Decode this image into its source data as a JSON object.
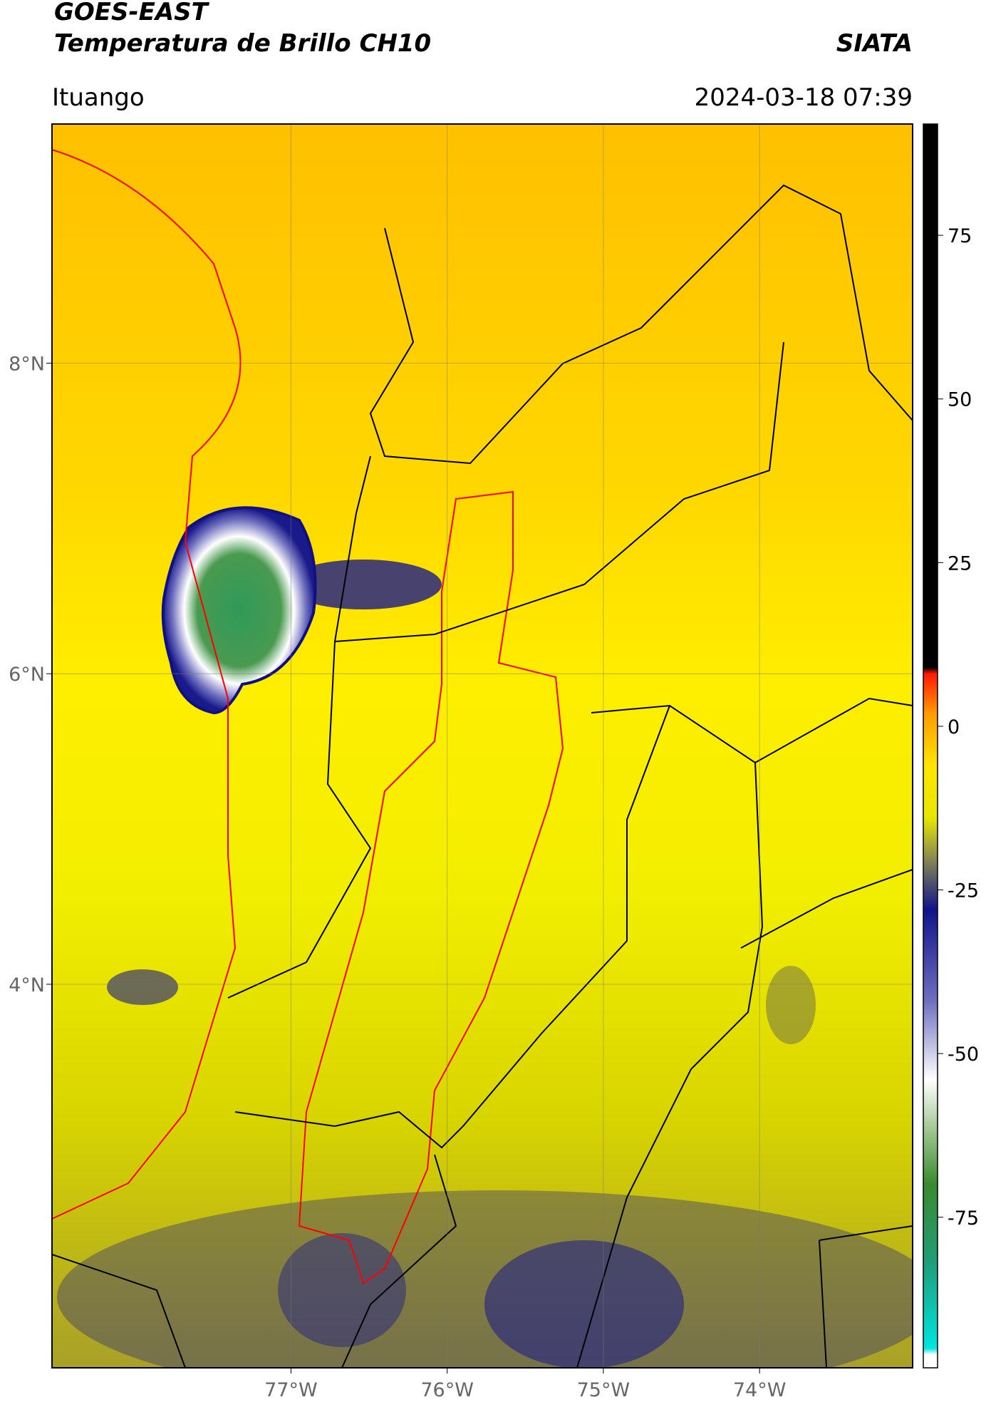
{
  "header": {
    "satellite": "GOES-EAST",
    "product": "Temperatura de Brillo CH10",
    "agency": "SIATA",
    "region": "Ituango",
    "datetime": "2024-03-18 07:39"
  },
  "map": {
    "lonlim": [
      -78.53,
      -73.02
    ],
    "latlim": [
      1.53,
      9.54
    ],
    "lonticks": [
      {
        "value": -77,
        "label": "77°W"
      },
      {
        "value": -76,
        "label": "76°W"
      },
      {
        "value": -75,
        "label": "75°W"
      },
      {
        "value": -74,
        "label": "74°W"
      }
    ],
    "latticks": [
      {
        "value": 8,
        "label": "8°N"
      },
      {
        "value": 6,
        "label": "6°N"
      },
      {
        "value": 4,
        "label": "4°N"
      }
    ],
    "grid": true
  },
  "colorbar": {
    "lim": [
      -98,
      92
    ],
    "ticks": [
      75,
      50,
      25,
      0,
      -25,
      -50,
      -75
    ],
    "stops": [
      {
        "value": -98,
        "color": "#ffffff"
      },
      {
        "value": -96,
        "color": "#ffffff"
      },
      {
        "value": -95,
        "color": "#00e5e0"
      },
      {
        "value": -82,
        "color": "#1f9e7a"
      },
      {
        "value": -70,
        "color": "#3a8a2e"
      },
      {
        "value": -62,
        "color": "#9cc48e"
      },
      {
        "value": -54,
        "color": "#ffffff"
      },
      {
        "value": -42,
        "color": "#6f6fc0"
      },
      {
        "value": -28,
        "color": "#10148a"
      },
      {
        "value": -20,
        "color": "#8c8c50"
      },
      {
        "value": -14,
        "color": "#e8e600"
      },
      {
        "value": -6,
        "color": "#ffe600"
      },
      {
        "value": 2,
        "color": "#ff9a00"
      },
      {
        "value": 8,
        "color": "#ff1a00"
      },
      {
        "value": 9,
        "color": "#000000"
      },
      {
        "value": 92,
        "color": "#000000"
      }
    ]
  }
}
